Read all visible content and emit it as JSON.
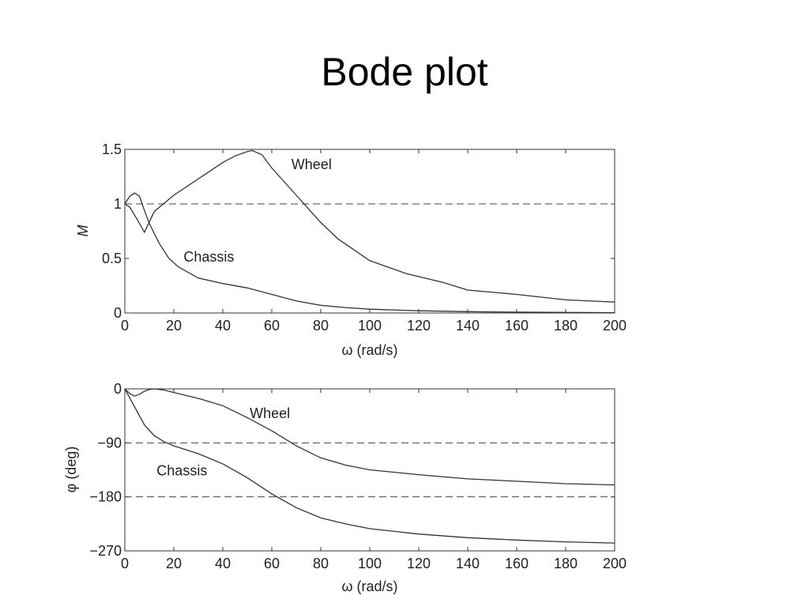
{
  "slide": {
    "title": "Bode plot"
  },
  "chart_data": [
    {
      "type": "line",
      "title": "",
      "xlabel": "ω (rad/s)",
      "ylabel": "M",
      "xlim": [
        0,
        200
      ],
      "ylim": [
        0,
        1.5
      ],
      "xticks": [
        0,
        20,
        40,
        60,
        80,
        100,
        120,
        140,
        160,
        180,
        200
      ],
      "yticks": [
        0,
        0.5,
        1,
        1.5
      ],
      "ytick_labels": [
        "0",
        "0.5",
        "1",
        "1.5"
      ],
      "grid": false,
      "reference_lines": [
        {
          "y": 1,
          "style": "dashed"
        }
      ],
      "series": [
        {
          "name": "Wheel",
          "x": [
            0,
            2,
            5,
            8,
            12,
            20,
            30,
            40,
            45,
            50,
            52,
            56,
            60,
            70,
            80,
            87,
            100,
            115,
            130,
            140,
            160,
            180,
            200
          ],
          "y": [
            1.0,
            0.97,
            0.86,
            0.74,
            0.93,
            1.08,
            1.23,
            1.38,
            1.44,
            1.48,
            1.49,
            1.45,
            1.33,
            1.08,
            0.83,
            0.68,
            0.48,
            0.36,
            0.28,
            0.21,
            0.17,
            0.12,
            0.1
          ]
        },
        {
          "name": "Chassis",
          "x": [
            0,
            2,
            4,
            6,
            8,
            10,
            14,
            18,
            22,
            30,
            40,
            50,
            60,
            70,
            80,
            90,
            100,
            120,
            140,
            160,
            180,
            200
          ],
          "y": [
            1.0,
            1.07,
            1.1,
            1.07,
            0.94,
            0.82,
            0.64,
            0.5,
            0.42,
            0.32,
            0.27,
            0.23,
            0.17,
            0.11,
            0.07,
            0.05,
            0.035,
            0.02,
            0.012,
            0.008,
            0.005,
            0.003
          ]
        }
      ],
      "annotations": [
        {
          "text": "Wheel",
          "x": 68,
          "y": 1.32
        },
        {
          "text": "Chassis",
          "x": 24,
          "y": 0.47
        }
      ]
    },
    {
      "type": "line",
      "title": "",
      "xlabel": "ω (rad/s)",
      "ylabel": "φ (deg)",
      "xlim": [
        0,
        200
      ],
      "ylim": [
        -270,
        0
      ],
      "xticks": [
        0,
        20,
        40,
        60,
        80,
        100,
        120,
        140,
        160,
        180,
        200
      ],
      "yticks": [
        -270,
        -180,
        -90,
        0
      ],
      "ytick_labels": [
        "−270",
        "−180",
        "−90",
        "0"
      ],
      "grid": false,
      "reference_lines": [
        {
          "y": -90,
          "style": "dashed"
        },
        {
          "y": -180,
          "style": "dashed"
        }
      ],
      "series": [
        {
          "name": "Wheel",
          "x": [
            0,
            2,
            4,
            6,
            8,
            10,
            12,
            16,
            20,
            30,
            40,
            50,
            60,
            70,
            80,
            90,
            100,
            120,
            140,
            160,
            180,
            200
          ],
          "y": [
            0,
            -8,
            -12,
            -9,
            -4,
            -1,
            0,
            -2,
            -6,
            -16,
            -28,
            -48,
            -70,
            -95,
            -115,
            -127,
            -135,
            -143,
            -150,
            -154,
            -158,
            -160
          ]
        },
        {
          "name": "Chassis",
          "x": [
            0,
            4,
            8,
            12,
            16,
            20,
            30,
            40,
            50,
            60,
            70,
            80,
            90,
            100,
            120,
            140,
            160,
            180,
            200
          ],
          "y": [
            0,
            -30,
            -60,
            -78,
            -88,
            -95,
            -108,
            -125,
            -148,
            -175,
            -198,
            -215,
            -225,
            -233,
            -242,
            -248,
            -252,
            -255,
            -257
          ]
        }
      ],
      "annotations": [
        {
          "text": "Wheel",
          "x": 51,
          "y": -49
        },
        {
          "text": "Chassis",
          "x": 13,
          "y": -144
        }
      ]
    }
  ]
}
